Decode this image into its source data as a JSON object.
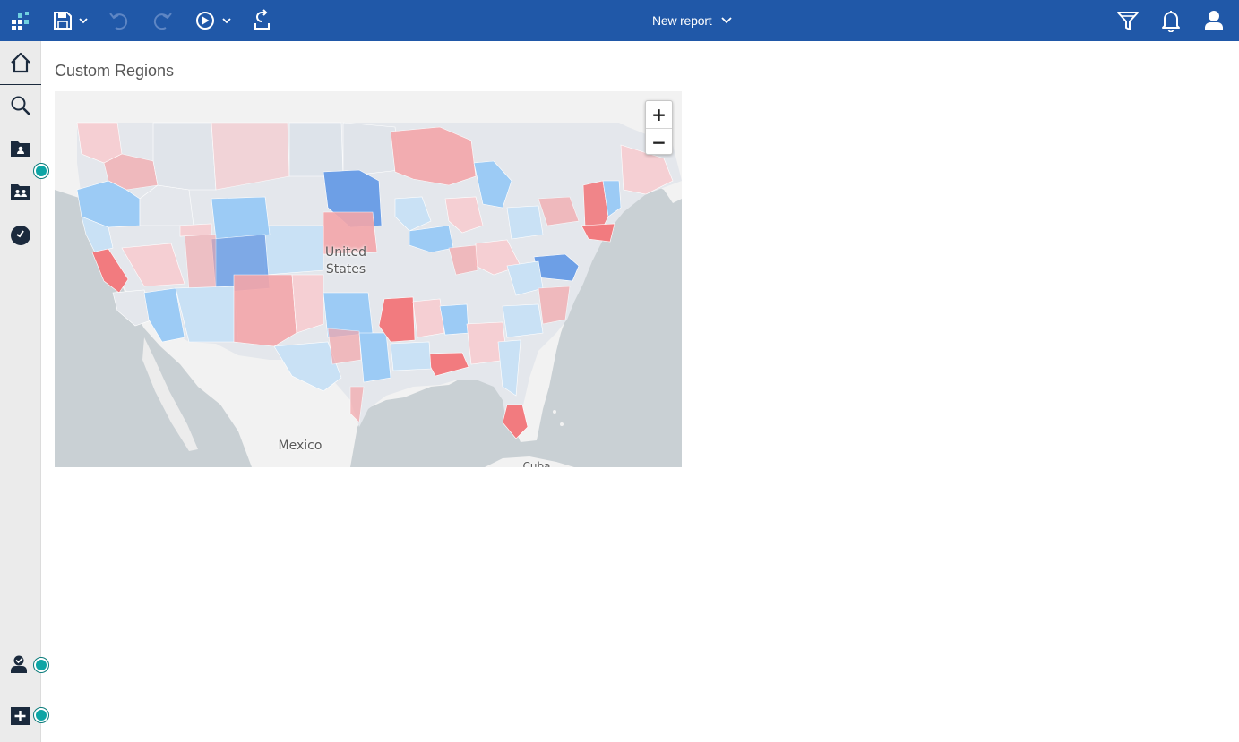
{
  "toolbar": {
    "report_title": "New report",
    "items": [
      "app-switcher",
      "save",
      "undo",
      "redo",
      "run",
      "share"
    ]
  },
  "leftrail": {
    "items": [
      "home",
      "search",
      "my-content",
      "team-content",
      "recent",
      "my-portal",
      "new"
    ]
  },
  "page": {
    "title": "Custom Regions"
  },
  "map": {
    "labels": {
      "country": "United\nStates",
      "mexico": "Mexico",
      "cuba": "Cuba"
    },
    "colors": {
      "water": "#c9d0d4",
      "land": "#f2f2f2",
      "strong_red": "#f27b7f",
      "medium_red": "#f4a6aa",
      "light_red": "#f5cfd3",
      "strong_blue": "#6d9fe6",
      "medium_blue": "#9ccbf5",
      "light_blue": "#c9e1f5"
    },
    "zoom_in": "+",
    "zoom_out": "−"
  },
  "colors": {
    "header": "#2058a8",
    "rail": "#ebebeb",
    "badge": "#0ea5a5"
  }
}
